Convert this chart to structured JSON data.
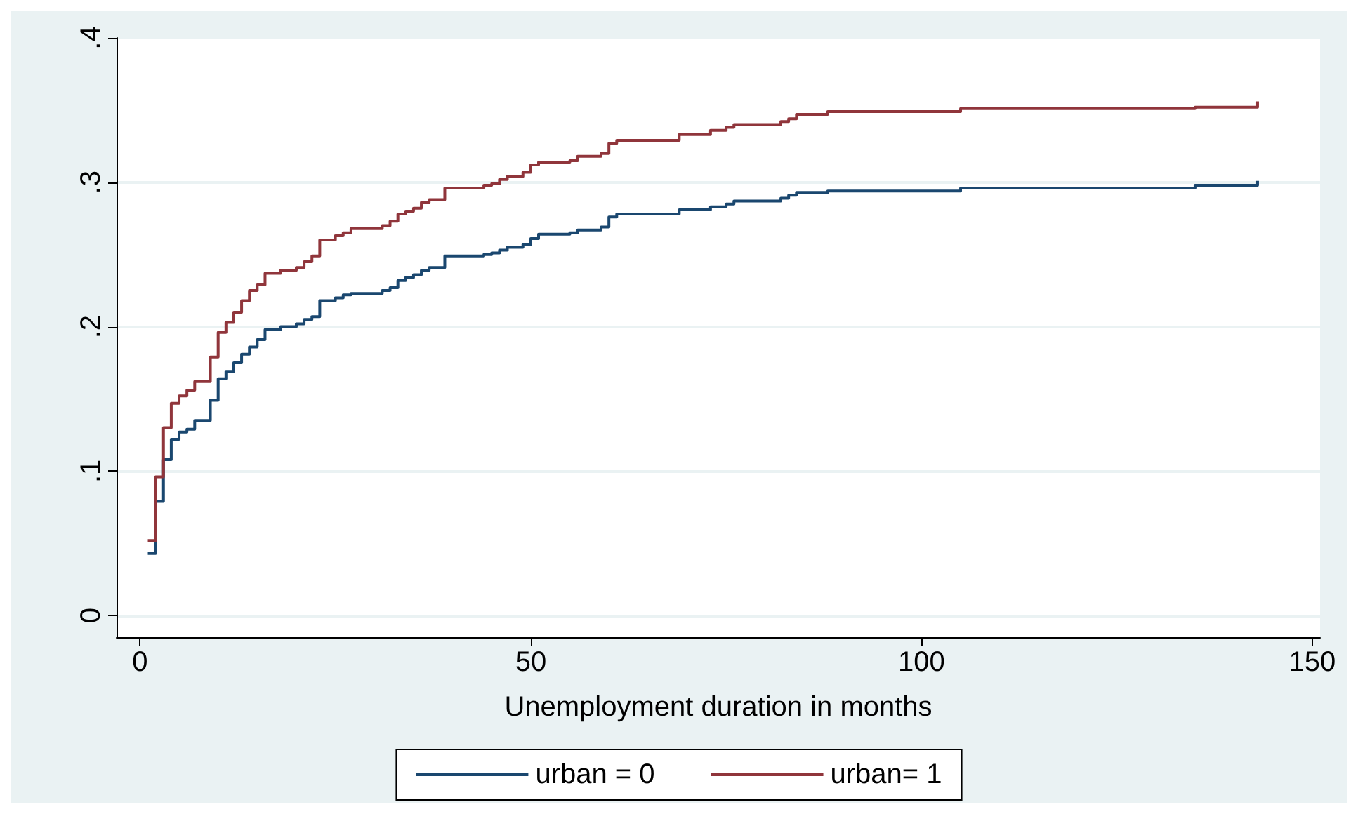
{
  "chart_data": {
    "type": "step",
    "xlabel": "Unemployment duration in months",
    "xlim": [
      -3,
      151
    ],
    "xticks": [
      0,
      50,
      100,
      150
    ],
    "ylim": [
      -0.015,
      0.4
    ],
    "yticks": [
      {
        "value": 0,
        "label": "0"
      },
      {
        "value": 0.1,
        "label": ".1"
      },
      {
        "value": 0.2,
        "label": ".2"
      },
      {
        "value": 0.3,
        "label": ".3"
      },
      {
        "value": 0.4,
        "label": ".4"
      }
    ],
    "grid": "y",
    "legend": "bottom",
    "line_style": "solid",
    "marker": "none",
    "series": [
      {
        "name": "urban = 0",
        "color": "#1a476f",
        "x": [
          1,
          2,
          3,
          4,
          5,
          6,
          7,
          9,
          10,
          11,
          12,
          13,
          14,
          15,
          16,
          18,
          20,
          21,
          22,
          23,
          25,
          26,
          27,
          31,
          32,
          33,
          34,
          35,
          36,
          37,
          39,
          44,
          45,
          46,
          47,
          49,
          50,
          51,
          55,
          56,
          59,
          60,
          61,
          69,
          73,
          75,
          76,
          82,
          83,
          84,
          88,
          105,
          135,
          143
        ],
        "values": [
          0.043,
          0.079,
          0.108,
          0.122,
          0.127,
          0.129,
          0.135,
          0.149,
          0.164,
          0.169,
          0.175,
          0.181,
          0.186,
          0.191,
          0.198,
          0.2,
          0.202,
          0.205,
          0.207,
          0.218,
          0.22,
          0.222,
          0.223,
          0.225,
          0.227,
          0.232,
          0.234,
          0.236,
          0.239,
          0.241,
          0.249,
          0.25,
          0.251,
          0.253,
          0.255,
          0.257,
          0.261,
          0.264,
          0.265,
          0.267,
          0.269,
          0.276,
          0.278,
          0.281,
          0.283,
          0.285,
          0.287,
          0.289,
          0.291,
          0.293,
          0.294,
          0.296,
          0.298,
          0.301
        ]
      },
      {
        "name": "urban= 1",
        "color": "#90353b",
        "x": [
          1,
          2,
          3,
          4,
          5,
          6,
          7,
          9,
          10,
          11,
          12,
          13,
          14,
          15,
          16,
          18,
          20,
          21,
          22,
          23,
          25,
          26,
          27,
          31,
          32,
          33,
          34,
          35,
          36,
          37,
          39,
          44,
          45,
          46,
          47,
          49,
          50,
          51,
          55,
          56,
          59,
          60,
          61,
          69,
          73,
          75,
          76,
          82,
          83,
          84,
          88,
          105,
          135,
          143
        ],
        "values": [
          0.052,
          0.096,
          0.13,
          0.147,
          0.152,
          0.156,
          0.162,
          0.179,
          0.196,
          0.203,
          0.21,
          0.218,
          0.225,
          0.229,
          0.237,
          0.239,
          0.241,
          0.245,
          0.249,
          0.26,
          0.263,
          0.265,
          0.268,
          0.27,
          0.273,
          0.278,
          0.28,
          0.282,
          0.286,
          0.288,
          0.296,
          0.298,
          0.299,
          0.302,
          0.304,
          0.307,
          0.312,
          0.314,
          0.315,
          0.318,
          0.32,
          0.327,
          0.329,
          0.333,
          0.336,
          0.338,
          0.34,
          0.342,
          0.344,
          0.347,
          0.349,
          0.351,
          0.352,
          0.356
        ]
      }
    ]
  }
}
